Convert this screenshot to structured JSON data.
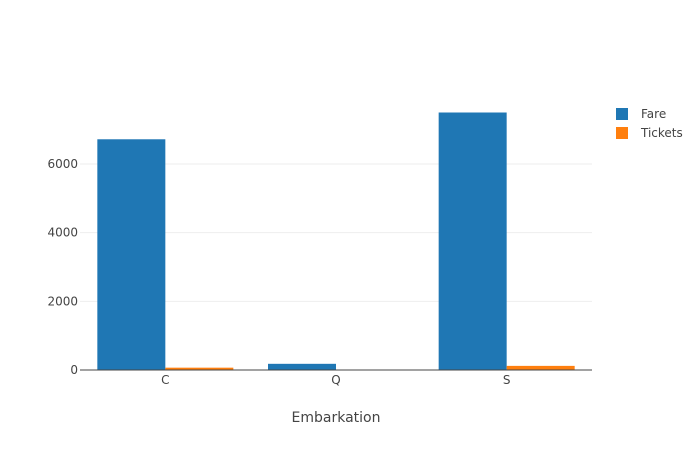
{
  "colors": {
    "fare": "#1f77b4",
    "tickets": "#ff7f0e",
    "axis": "#444444",
    "grid": "#eeeeee"
  },
  "chart_data": {
    "type": "bar",
    "title": "",
    "xlabel": "Embarkation",
    "ylabel": "",
    "categories": [
      "C",
      "Q",
      "S"
    ],
    "series": [
      {
        "name": "Fare",
        "values": [
          6720,
          180,
          7500
        ]
      },
      {
        "name": "Tickets",
        "values": [
          68,
          4,
          120
        ]
      }
    ],
    "ylim": [
      0,
      8000
    ],
    "yticks": [
      0,
      2000,
      4000,
      6000
    ],
    "grid": true,
    "legend": "top-right"
  }
}
